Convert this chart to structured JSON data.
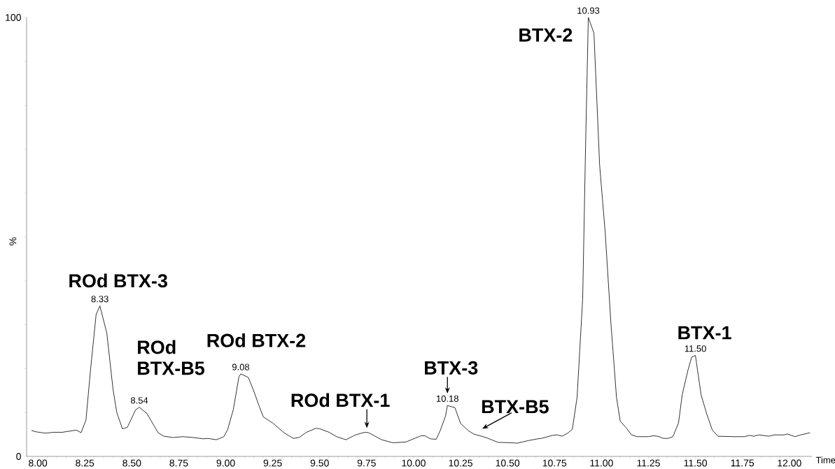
{
  "chart_data": {
    "type": "line",
    "xlabel": "Time",
    "ylabel": "%",
    "x": [
      7.966,
      7.99,
      8.04,
      8.085,
      8.13,
      8.205,
      8.23,
      8.256,
      8.28,
      8.31,
      8.33,
      8.367,
      8.4,
      8.42,
      8.45,
      8.476,
      8.52,
      8.54,
      8.58,
      8.64,
      8.67,
      8.72,
      8.77,
      8.83,
      8.88,
      8.905,
      8.95,
      8.99,
      9.01,
      9.04,
      9.07,
      9.08,
      9.12,
      9.15,
      9.18,
      9.2,
      9.25,
      9.31,
      9.36,
      9.39,
      9.43,
      9.48,
      9.5,
      9.55,
      9.59,
      9.64,
      9.69,
      9.74,
      9.76,
      9.83,
      9.89,
      9.96,
      10.04,
      10.06,
      10.09,
      10.12,
      10.14,
      10.17,
      10.18,
      10.22,
      10.25,
      10.29,
      10.32,
      10.385,
      10.42,
      10.45,
      10.53,
      10.55,
      10.61,
      10.66,
      10.68,
      10.74,
      10.765,
      10.79,
      10.82,
      10.845,
      10.87,
      10.9,
      10.915,
      10.93,
      10.96,
      10.99,
      11.02,
      11.05,
      11.08,
      11.1,
      11.13,
      11.16,
      11.19,
      11.25,
      11.275,
      11.3,
      11.33,
      11.355,
      11.38,
      11.41,
      11.43,
      11.46,
      11.48,
      11.5,
      11.53,
      11.56,
      11.59,
      11.62,
      11.7,
      11.76,
      11.79,
      11.81,
      11.84,
      11.89,
      11.92,
      11.97,
      11.99,
      12.03,
      12.06,
      12.11
    ],
    "values": [
      5.9,
      5.6,
      5.3,
      5.5,
      5.5,
      6.0,
      5.4,
      8.3,
      19.6,
      32.3,
      34.3,
      28.1,
      15.3,
      10.0,
      6.3,
      6.6,
      10.6,
      11.2,
      9.8,
      5.4,
      4.6,
      4.3,
      4.5,
      4.3,
      4.0,
      4.1,
      3.8,
      4.5,
      6.1,
      10.6,
      18.1,
      18.8,
      18.0,
      14.8,
      11.2,
      9.0,
      7.6,
      5.4,
      4.1,
      4.3,
      5.5,
      6.4,
      6.3,
      5.5,
      4.5,
      3.8,
      4.9,
      5.5,
      5.4,
      3.8,
      3.1,
      3.3,
      4.7,
      4.7,
      4.0,
      3.9,
      5.7,
      9.2,
      11.6,
      11.1,
      7.5,
      5.9,
      5.1,
      4.3,
      3.7,
      3.2,
      3.1,
      3.0,
      3.6,
      4.0,
      4.1,
      4.8,
      4.9,
      4.6,
      5.3,
      6.2,
      13.4,
      35.9,
      69.9,
      100,
      96.4,
      66.5,
      50.9,
      30.5,
      13.4,
      8.0,
      6.6,
      4.9,
      4.5,
      4.5,
      4.7,
      4.6,
      4.1,
      4.1,
      4.5,
      7.6,
      14.1,
      19.6,
      22.6,
      23.0,
      14.1,
      9.7,
      6.0,
      4.6,
      4.5,
      4.5,
      4.8,
      4.6,
      4.9,
      4.6,
      4.9,
      4.9,
      5.1,
      4.5,
      4.9,
      5.4
    ],
    "color": "#000000",
    "xlim": [
      7.94,
      12.12
    ],
    "xticks": [
      {
        "value": 8,
        "label": "8.00"
      },
      {
        "value": 8.25,
        "label": "8.25"
      },
      {
        "value": 8.5,
        "label": "8.50"
      },
      {
        "value": 8.75,
        "label": "8.75"
      },
      {
        "value": 9,
        "label": "9.00"
      },
      {
        "value": 9.25,
        "label": "9.25"
      },
      {
        "value": 9.5,
        "label": "9.50"
      },
      {
        "value": 9.75,
        "label": "9.75"
      },
      {
        "value": 10,
        "label": "10.00"
      },
      {
        "value": 10.25,
        "label": "10.25"
      },
      {
        "value": 10.5,
        "label": "10.50"
      },
      {
        "value": 10.75,
        "label": "10.75"
      },
      {
        "value": 11,
        "label": "11.00"
      },
      {
        "value": 11.25,
        "label": "11.25"
      },
      {
        "value": 11.5,
        "label": "11.50"
      },
      {
        "value": 11.75,
        "label": "11.75"
      },
      {
        "value": 12,
        "label": "12.00"
      }
    ],
    "ylim": [
      0,
      100
    ],
    "yticks": [
      0,
      {
        "value": 10,
        "label": null
      },
      {
        "value": 20,
        "label": null
      },
      {
        "value": 30,
        "label": null
      },
      {
        "value": 40,
        "label": null
      },
      {
        "value": 50,
        "label": null
      },
      {
        "value": 60,
        "label": null
      },
      {
        "value": 70,
        "label": null
      },
      {
        "value": 80,
        "label": null
      },
      {
        "value": 90,
        "label": null
      },
      100
    ],
    "grid": false,
    "marker": "none",
    "line_style": "solid",
    "annotations": [
      {
        "text": "ROd BTX-3",
        "x": 8.33,
        "y": 34.3
      },
      {
        "text": "ROd BTX-B5",
        "x": 8.54,
        "y": 11.2
      },
      {
        "text": "ROd BTX-2",
        "x": 9.08,
        "y": 18.8
      },
      {
        "text": "ROd BTX-1",
        "x": 9.74,
        "y": 5.5
      },
      {
        "text": "BTX-3",
        "x": 10.18,
        "y": 11.6
      },
      {
        "text": "BTX-B5",
        "x": 10.35,
        "y": 5.0
      },
      {
        "text": "BTX-2",
        "x": 10.93,
        "y": 100
      },
      {
        "text": "BTX-1",
        "x": 11.5,
        "y": 23.0
      },
      {
        "text": "8.33",
        "x": 8.33,
        "y": 34.3
      },
      {
        "text": "8.54",
        "x": 8.54,
        "y": 11.2
      },
      {
        "text": "9.08",
        "x": 9.08,
        "y": 18.8
      },
      {
        "text": "10.18",
        "x": 10.18,
        "y": 11.6
      },
      {
        "text": "10.93",
        "x": 10.93,
        "y": 100
      },
      {
        "text": "11.50",
        "x": 11.5,
        "y": 23.0
      }
    ]
  }
}
